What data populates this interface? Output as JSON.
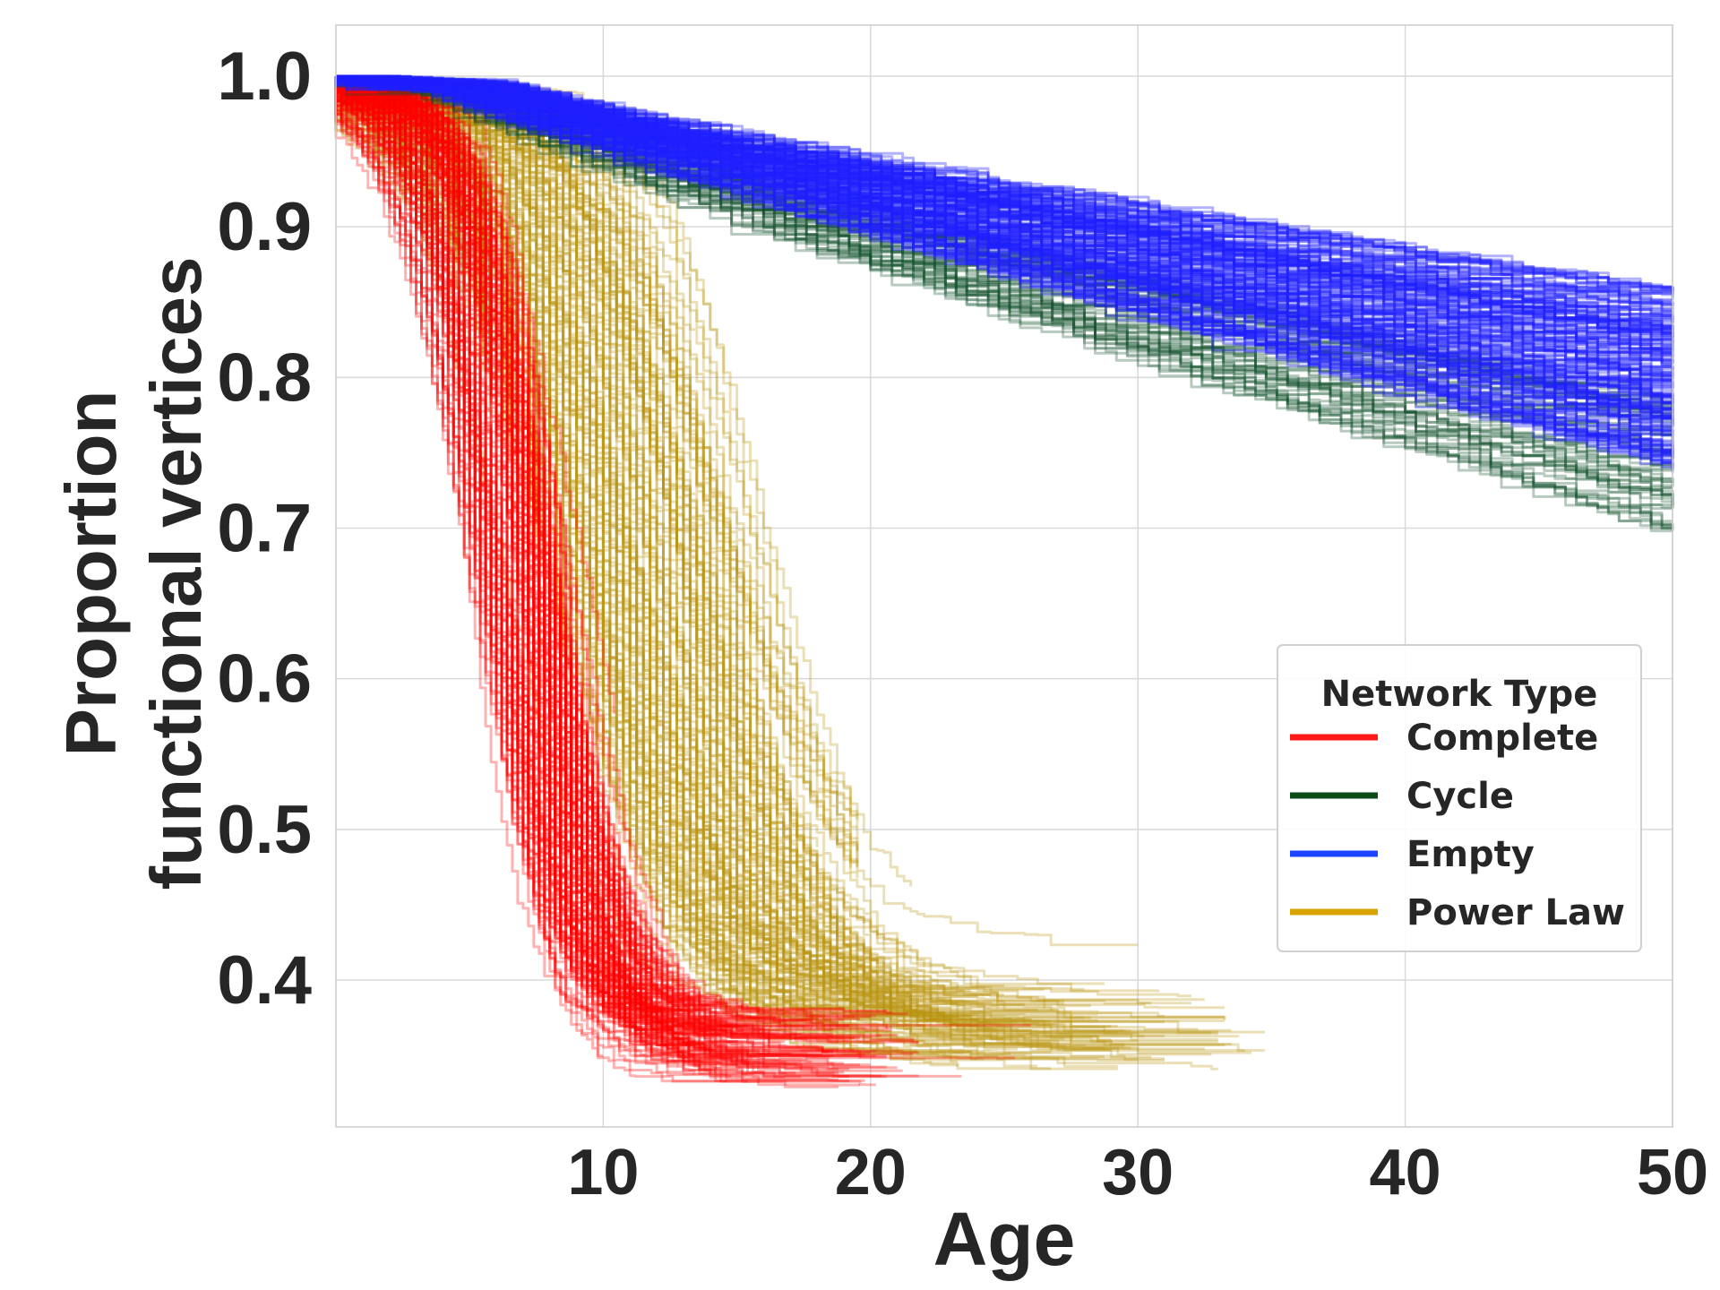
{
  "chart_data": {
    "type": "line",
    "xlabel": "Age",
    "ylabel_lines": [
      "Proportion",
      "functional vertices"
    ],
    "xlim": [
      0,
      50
    ],
    "ylim": [
      0.3,
      1.0
    ],
    "xticks": [
      {
        "value": 10,
        "label": "10"
      },
      {
        "value": 20,
        "label": "20"
      },
      {
        "value": 30,
        "label": "30"
      },
      {
        "value": 40,
        "label": "40"
      },
      {
        "value": 50,
        "label": "50"
      }
    ],
    "yticks": [
      {
        "value": 1.0,
        "label": "1.0"
      },
      {
        "value": 0.9,
        "label": "0.9"
      },
      {
        "value": 0.8,
        "label": "0.8"
      },
      {
        "value": 0.7,
        "label": "0.7"
      },
      {
        "value": 0.6,
        "label": "0.6"
      },
      {
        "value": 0.5,
        "label": "0.5"
      },
      {
        "value": 0.4,
        "label": "0.4"
      }
    ],
    "grid": true,
    "legend": {
      "title": "Network Type",
      "placement": "lower-right",
      "entries": [
        {
          "label": "Complete",
          "color": "#ff1a1a"
        },
        {
          "label": "Cycle",
          "color": "#0b4a1a"
        },
        {
          "label": "Empty",
          "color": "#1a44ff"
        },
        {
          "label": "Power Law",
          "color": "#d9a300"
        }
      ]
    },
    "series": [
      {
        "name": "Complete",
        "color": "#ff0000",
        "sample_count": 200,
        "shape": "rapid sigmoid decline",
        "x_range": [
          0,
          26
        ],
        "y_plateau_end": [
          0.33,
          0.38
        ]
      },
      {
        "name": "Power Law",
        "color": "#b8960f",
        "sample_count": 180,
        "shape": "delayed sigmoid decline",
        "x_range": [
          0,
          35.5
        ],
        "y_plateau_end": [
          0.36,
          0.53
        ]
      },
      {
        "name": "Cycle",
        "color": "#0f4f2a",
        "sample_count": 60,
        "shape": "slow near-linear decline",
        "x_range": [
          0,
          50
        ],
        "y_at_x50": [
          0.7,
          0.79
        ]
      },
      {
        "name": "Empty",
        "color": "#1f1fff",
        "sample_count": 200,
        "shape": "slow near-linear decline",
        "x_range": [
          0,
          50
        ],
        "y_at_x50": [
          0.74,
          0.86
        ]
      }
    ]
  }
}
